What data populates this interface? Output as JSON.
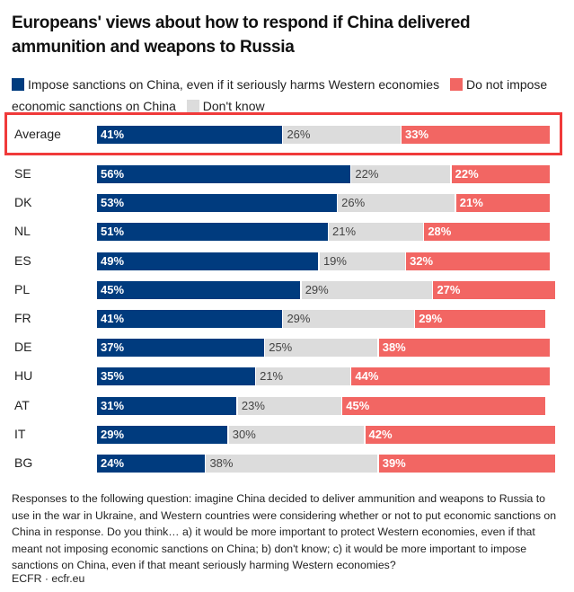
{
  "chart_data": {
    "type": "bar",
    "orientation": "horizontal",
    "stacked": true,
    "title": "Europeans' views about how to respond if China delivered ammunition and weapons to Russia",
    "legend": [
      {
        "name": "Impose sanctions on China, even if it seriously harms Western economies",
        "color": "#003b7e"
      },
      {
        "name": "Do not impose economic sanctions on China",
        "color": "#f26663"
      },
      {
        "name": "Don't know",
        "color": "#dcdcdc"
      }
    ],
    "legend_placement": "top",
    "grid": false,
    "xlim": [
      0,
      100
    ],
    "segment_order": [
      "impose",
      "dont_know",
      "not_impose"
    ],
    "categories": [
      "Average",
      "SE",
      "DK",
      "NL",
      "ES",
      "PL",
      "FR",
      "DE",
      "HU",
      "AT",
      "IT",
      "BG"
    ],
    "highlighted_category": "Average",
    "series": [
      {
        "key": "impose",
        "name": "Impose sanctions on China, even if it seriously harms Western economies",
        "values": [
          41,
          56,
          53,
          51,
          49,
          45,
          41,
          37,
          35,
          31,
          29,
          24
        ]
      },
      {
        "key": "dont_know",
        "name": "Don't know",
        "values": [
          26,
          22,
          26,
          21,
          19,
          29,
          29,
          25,
          21,
          23,
          30,
          38
        ]
      },
      {
        "key": "not_impose",
        "name": "Do not impose economic sanctions on China",
        "values": [
          33,
          22,
          21,
          28,
          32,
          27,
          29,
          38,
          44,
          45,
          42,
          39
        ]
      }
    ]
  },
  "note": "Responses to the following question: imagine China decided to deliver ammunition and weapons to Russia to use in the war in Ukraine, and Western countries were considering whether or not to put economic sanctions on China in response. Do you think… a) it would be more important to protect Western economies, even if that meant not imposing economic sanctions on China; b) don't know; c) it would be more important to impose sanctions on China, even if that meant seriously harming Western economies?",
  "source": "ECFR · ecfr.eu",
  "highlight_color": "#f03a3a"
}
